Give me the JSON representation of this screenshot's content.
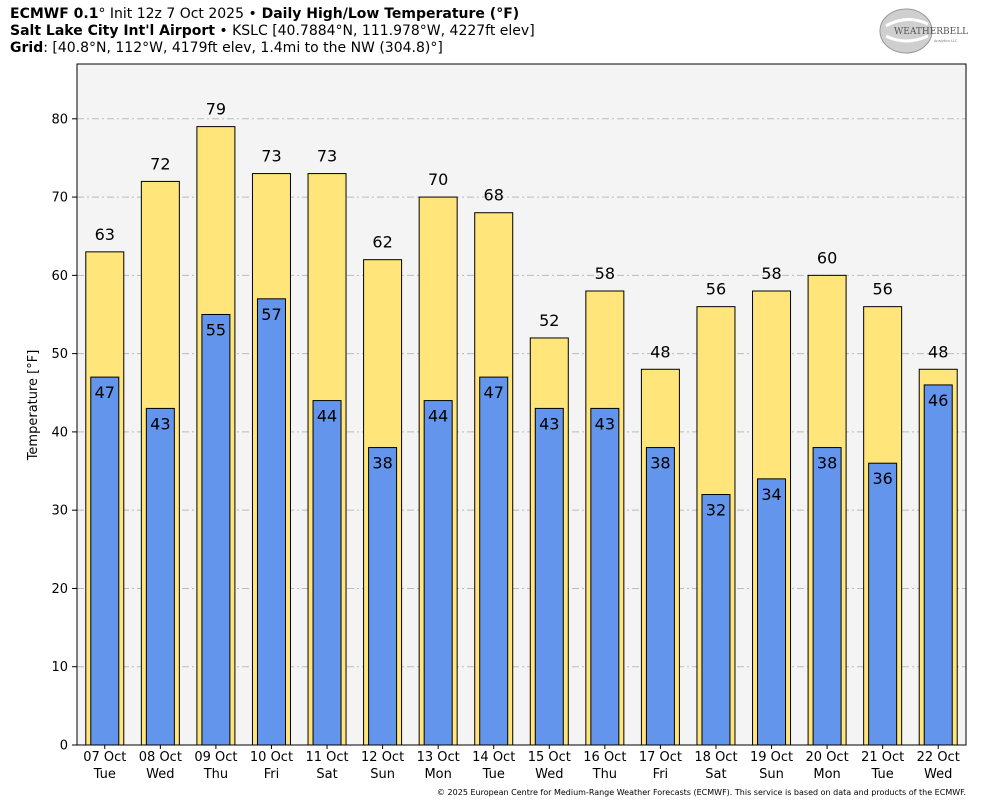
{
  "header": {
    "line1": {
      "model": "ECMWF 0.1",
      "deg": "°",
      "init": " Init 12z 7 Oct 2025 ",
      "bullet": "•",
      "title": " Daily High/Low Temperature (°F)"
    },
    "line2": {
      "station": "Salt Lake City Int'l Airport",
      "rest": " • KSLC [40.7884°N, 111.978°W, 4227ft elev]"
    },
    "line3": {
      "label": "Grid",
      "rest": ": [40.8°N, 112°W, 4179ft elev, 1.4mi to the NW (304.8)°]"
    }
  },
  "logo": {
    "text": "WEATHERBELL",
    "sub": "Analytics LLC"
  },
  "copyright": "© 2025 European Centre for Medium-Range Weather Forecasts (ECMWF). This service is based on data and products of the ECMWF.",
  "colors": {
    "high": "#ffe57a",
    "low": "#6495ed",
    "plot_bg": "#f4f4f4",
    "grid": "#bbbbbb"
  },
  "chart_data": {
    "type": "bar",
    "ylabel": "Temperature [°F]",
    "ylim": [
      0,
      87
    ],
    "yticks": [
      0,
      10,
      20,
      30,
      40,
      50,
      60,
      70,
      80
    ],
    "grid": true,
    "categories": [
      "07 Oct",
      "08 Oct",
      "09 Oct",
      "10 Oct",
      "11 Oct",
      "12 Oct",
      "13 Oct",
      "14 Oct",
      "15 Oct",
      "16 Oct",
      "17 Oct",
      "18 Oct",
      "19 Oct",
      "20 Oct",
      "21 Oct",
      "22 Oct"
    ],
    "weekdays": [
      "Tue",
      "Wed",
      "Thu",
      "Fri",
      "Sat",
      "Sun",
      "Mon",
      "Tue",
      "Wed",
      "Thu",
      "Fri",
      "Sat",
      "Sun",
      "Mon",
      "Tue",
      "Wed"
    ],
    "series": [
      {
        "values": [
          63,
          72,
          79,
          73,
          73,
          62,
          70,
          68,
          52,
          58,
          48,
          56,
          58,
          60,
          56,
          48
        ]
      },
      {
        "values": [
          47,
          43,
          55,
          57,
          44,
          38,
          44,
          47,
          43,
          43,
          38,
          32,
          34,
          38,
          36,
          46
        ]
      }
    ]
  }
}
